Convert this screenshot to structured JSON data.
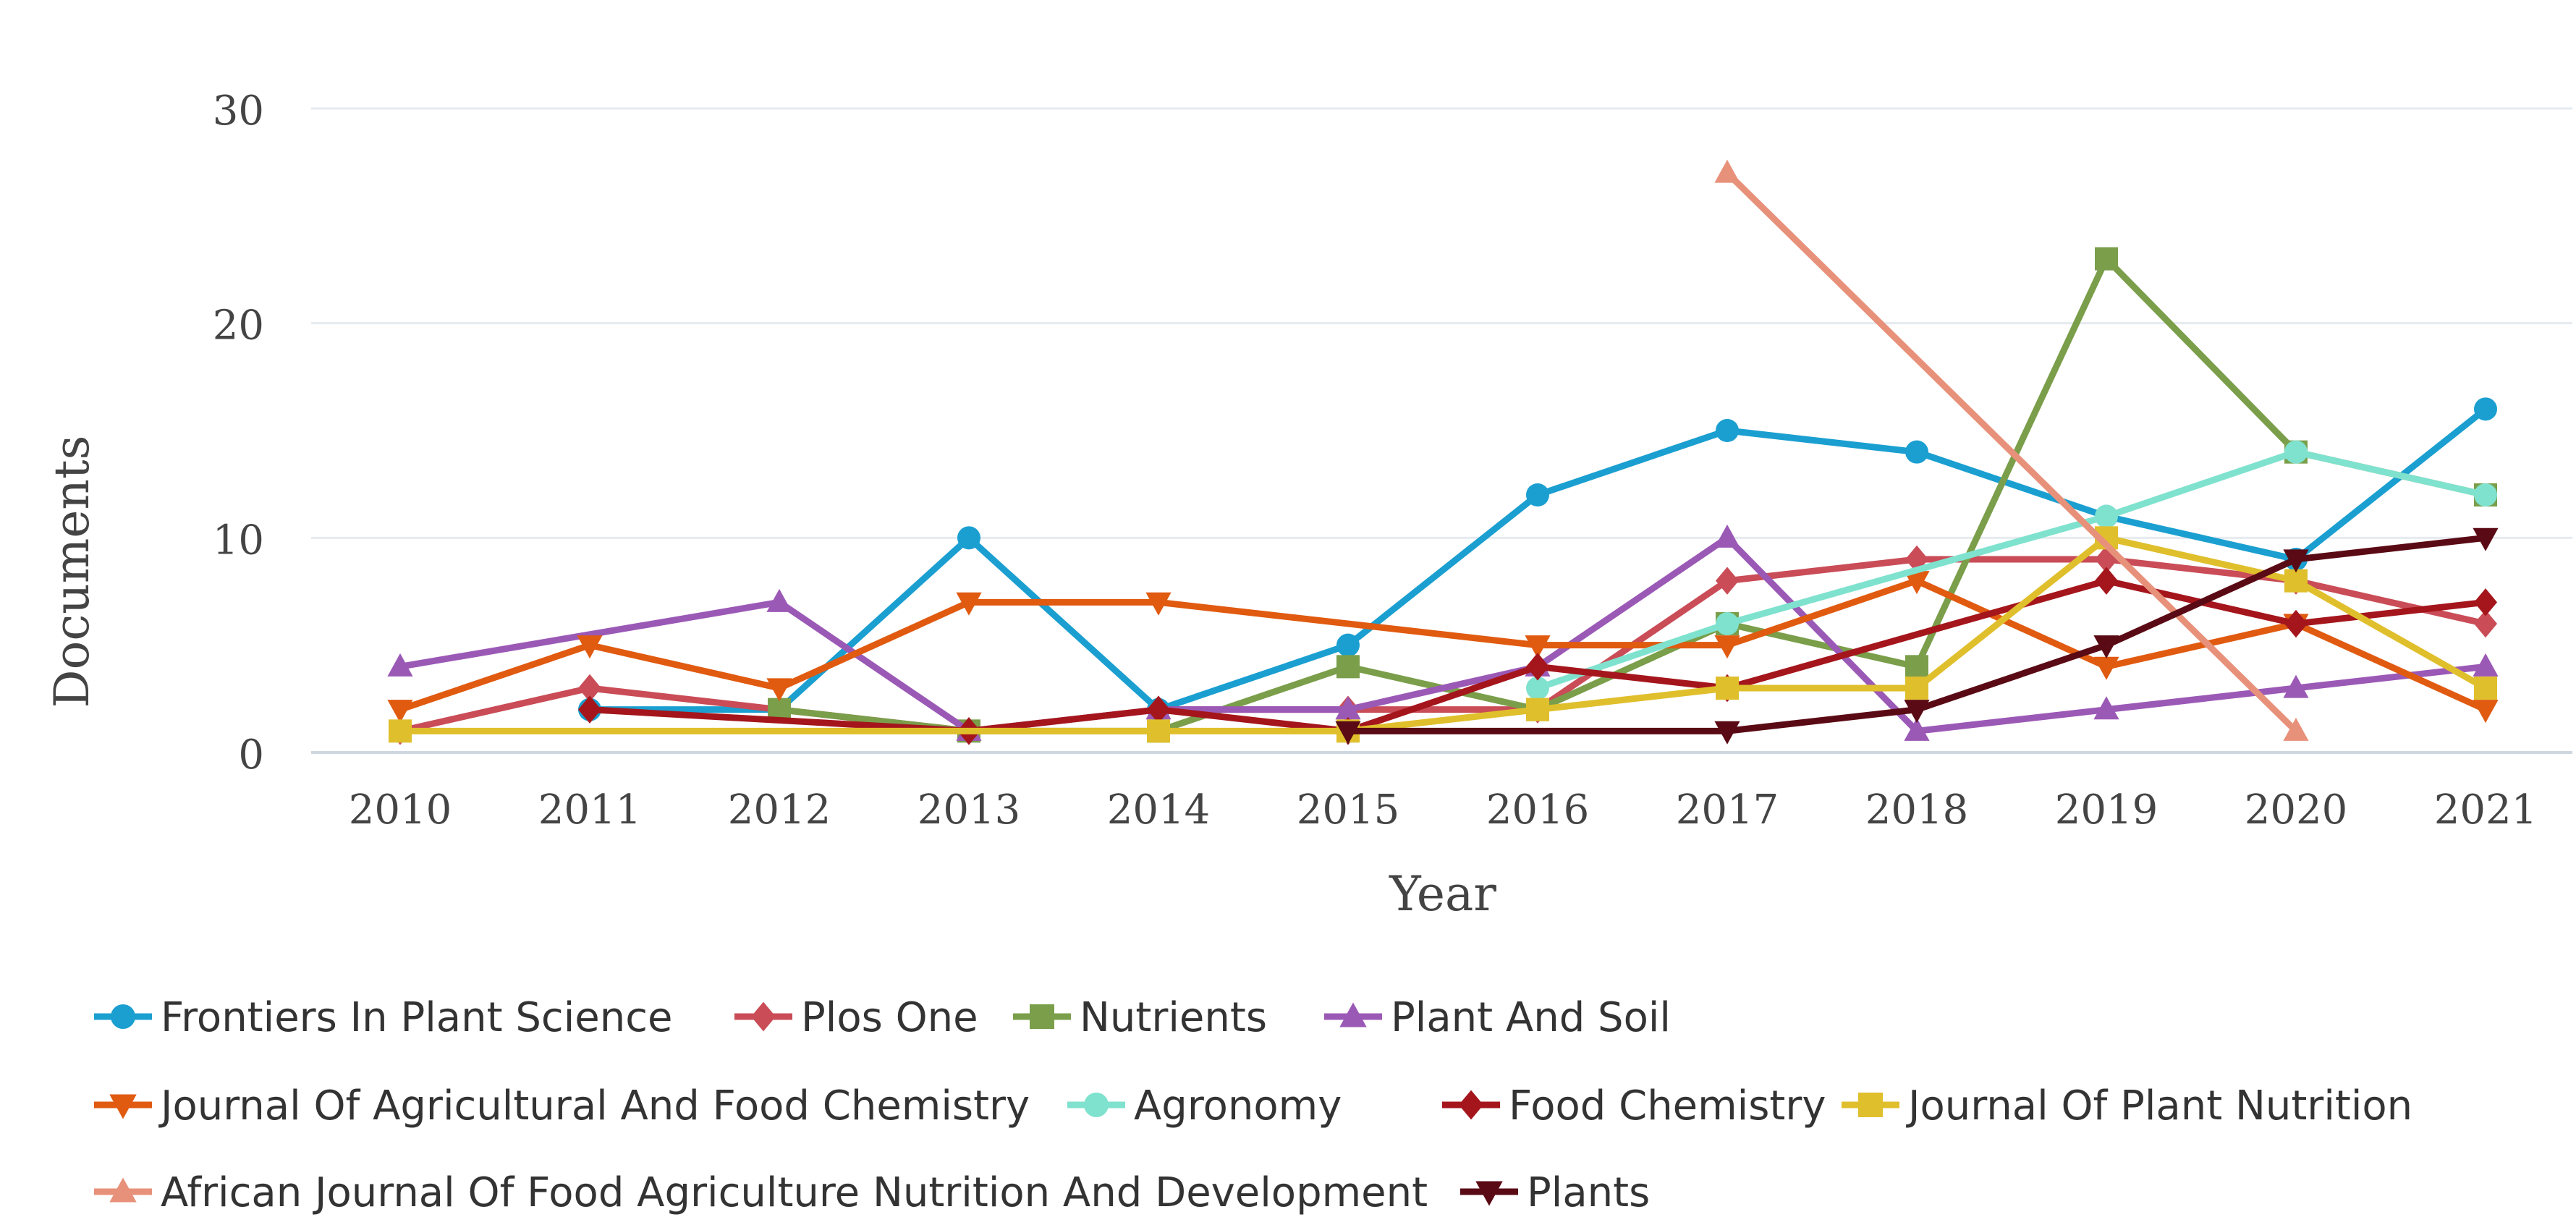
{
  "chart_data": {
    "type": "line",
    "title": "",
    "xlabel": "Year",
    "ylabel": "Documents",
    "categories": [
      "2010",
      "2011",
      "2012",
      "2013",
      "2014",
      "2015",
      "2016",
      "2017",
      "2018",
      "2019",
      "2020",
      "2021"
    ],
    "ylim": [
      0,
      30
    ],
    "yticks": [
      "0",
      "10",
      "20",
      "30"
    ],
    "grid": true,
    "legend_position": "bottom",
    "series": [
      {
        "name": "Frontiers In Plant Science",
        "color": "#1A9FD0",
        "marker": "circle",
        "values": [
          null,
          2,
          2,
          10,
          2,
          5,
          12,
          15,
          14,
          11,
          9,
          16
        ]
      },
      {
        "name": "Plos One",
        "color": "#C94C57",
        "marker": "diamond",
        "values": [
          1,
          3,
          2,
          1,
          2,
          2,
          2,
          8,
          9,
          9,
          8,
          6
        ]
      },
      {
        "name": "Nutrients",
        "color": "#7A9E4A",
        "marker": "square",
        "values": [
          null,
          null,
          2,
          1,
          1,
          4,
          2,
          6,
          4,
          23,
          14,
          12
        ]
      },
      {
        "name": "Plant And Soil",
        "color": "#9B59B6",
        "marker": "triangle",
        "values": [
          4,
          null,
          7,
          1,
          2,
          2,
          4,
          10,
          1,
          2,
          3,
          4
        ]
      },
      {
        "name": "Journal Of Agricultural And Food Chemistry",
        "color": "#E05A10",
        "marker": "triangle-down",
        "values": [
          2,
          5,
          3,
          7,
          7,
          null,
          5,
          5,
          8,
          4,
          6,
          2
        ]
      },
      {
        "name": "Agronomy",
        "color": "#7FE2CE",
        "marker": "circle",
        "values": [
          null,
          null,
          null,
          null,
          null,
          null,
          3,
          6,
          null,
          11,
          14,
          12
        ]
      },
      {
        "name": "Food Chemistry",
        "color": "#A4161C",
        "marker": "diamond",
        "values": [
          null,
          2,
          null,
          1,
          2,
          1,
          4,
          3,
          null,
          8,
          6,
          7
        ]
      },
      {
        "name": "Journal Of Plant Nutrition",
        "color": "#E0BF2C",
        "marker": "square",
        "values": [
          1,
          null,
          null,
          null,
          1,
          1,
          2,
          3,
          3,
          10,
          8,
          3
        ]
      },
      {
        "name": "African Journal Of Food Agriculture Nutrition And Development",
        "color": "#E8917A",
        "marker": "triangle",
        "values": [
          null,
          null,
          null,
          null,
          null,
          null,
          null,
          27,
          null,
          null,
          1,
          null
        ]
      },
      {
        "name": "Plants",
        "color": "#5A0A14",
        "marker": "triangle-down",
        "values": [
          null,
          null,
          null,
          null,
          null,
          1,
          null,
          1,
          2,
          5,
          9,
          10
        ]
      }
    ]
  }
}
